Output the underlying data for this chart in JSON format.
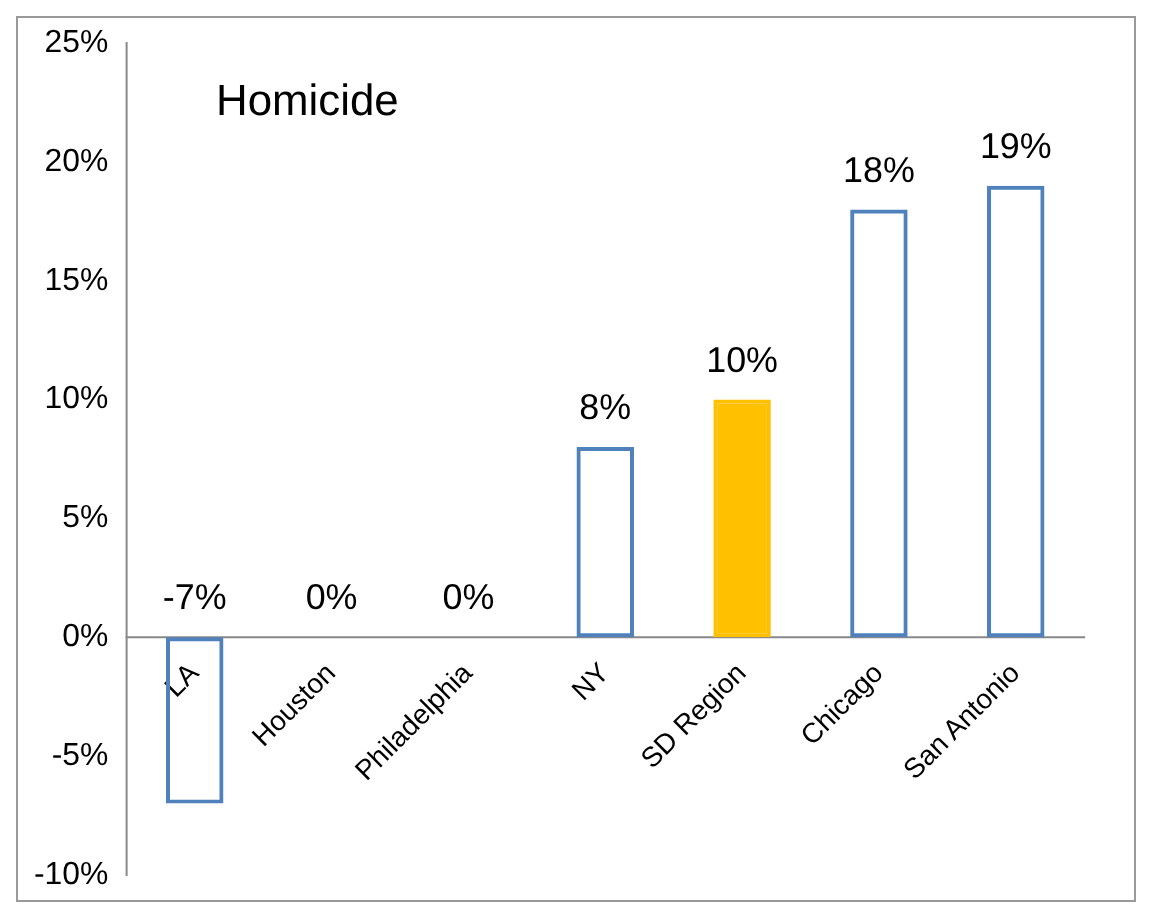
{
  "chart_data": {
    "type": "bar",
    "title": "Homicide",
    "categories": [
      "LA",
      "Houston",
      "Philadelphia",
      "NY",
      "SD Region",
      "Chicago",
      "San Antonio"
    ],
    "values": [
      -7,
      0,
      0,
      8,
      10,
      18,
      19
    ],
    "colors": [
      "#4f81bd",
      "#4f81bd",
      "#4f81bd",
      "#4f81bd",
      "#ffc000",
      "#4f81bd",
      "#4f81bd"
    ],
    "value_labels": [
      "-7%",
      "0%",
      "0%",
      "8%",
      "10%",
      "18%",
      "19%"
    ],
    "ylim": [
      -10,
      25
    ],
    "yticks": [
      {
        "value": -10,
        "label": "-10%"
      },
      {
        "value": -5,
        "label": "-5%"
      },
      {
        "value": 0,
        "label": "0%"
      },
      {
        "value": 5,
        "label": "5%"
      },
      {
        "value": 10,
        "label": "10%"
      },
      {
        "value": 15,
        "label": "15%"
      },
      {
        "value": 20,
        "label": "20%"
      },
      {
        "value": 25,
        "label": "25%"
      }
    ],
    "grid": false,
    "legend": false
  }
}
